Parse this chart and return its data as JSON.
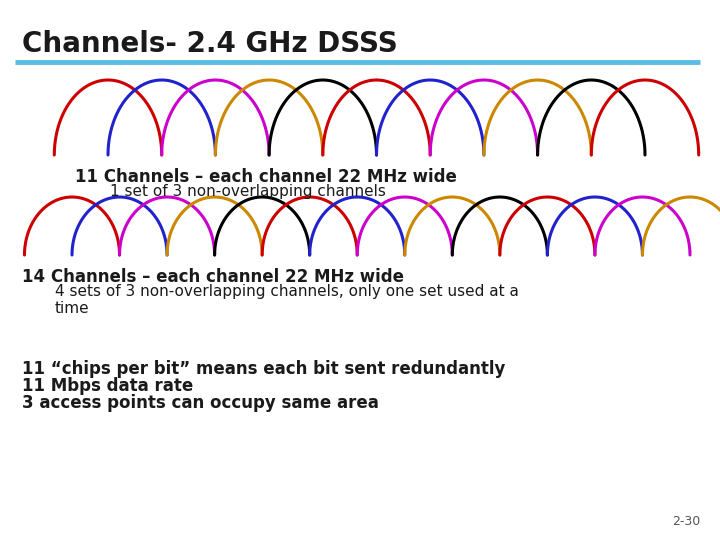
{
  "title": "Channels- 2.4 GHz DSSS",
  "title_color": "#1a1a1a",
  "title_fontsize": 20,
  "separator_color": "#5bbde4",
  "bg_color": "#ffffff",
  "line1_text": "11 Channels – each channel 22 MHz wide",
  "line1_sub": "1 set of 3 non-overlapping channels",
  "line2_text": "14 Channels – each channel 22 MHz wide",
  "line2_sub": "4 sets of 3 non-overlapping channels, only one set used at a\ntime",
  "line3a": "11 “chips per bit” means each bit sent redundantly",
  "line3b": "11 Mbps data rate",
  "line3c": "3 access points can occupy same area",
  "footer": "2-30",
  "text_fontsize": 12,
  "sub_fontsize": 11,
  "arc1_colors": [
    "#cc0000",
    "#2222cc",
    "#cc00cc",
    "#cc8800",
    "#000000",
    "#cc0000",
    "#2222cc",
    "#cc00cc",
    "#cc8800",
    "#000000",
    "#cc0000"
  ],
  "arc2_colors": [
    "#cc0000",
    "#2222cc",
    "#cc00cc",
    "#cc8800",
    "#000000",
    "#cc0000",
    "#2222cc",
    "#cc00cc",
    "#cc8800",
    "#000000",
    "#cc0000",
    "#2222cc",
    "#cc00cc",
    "#cc8800"
  ],
  "n_arc1": 11,
  "n_arc2": 14
}
